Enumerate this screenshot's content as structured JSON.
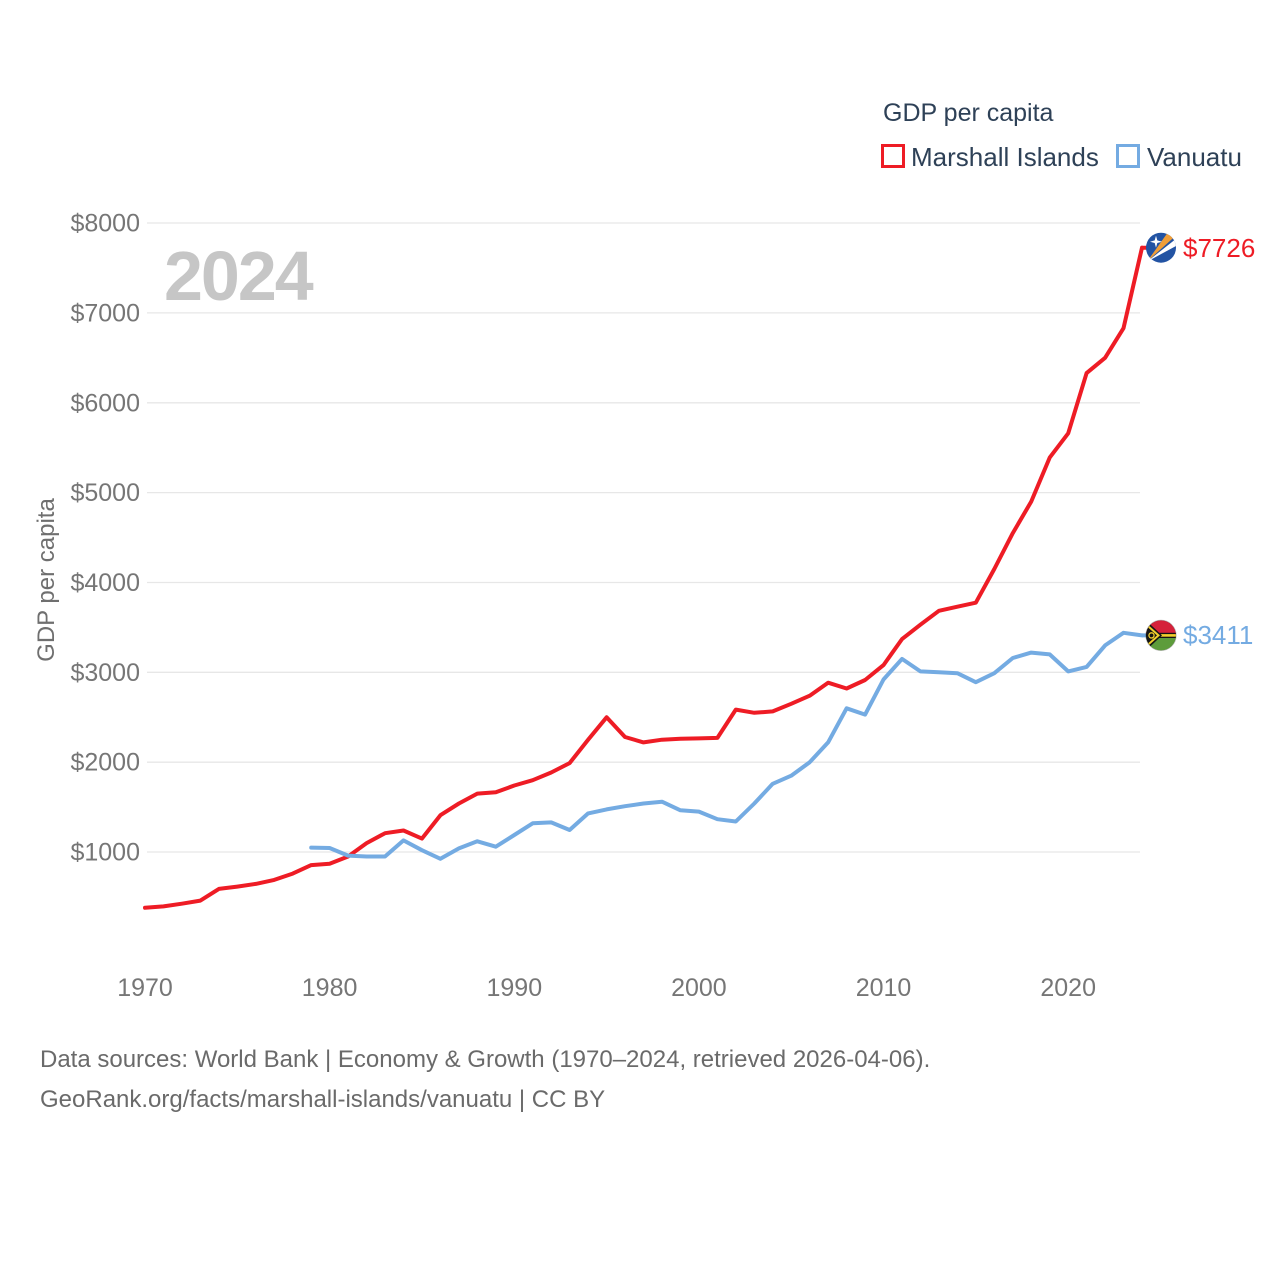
{
  "watermark": "2024",
  "legend": {
    "title": "GDP per capita",
    "series": [
      {
        "label": "Marshall Islands",
        "color": "#ee1c25"
      },
      {
        "label": "Vanuatu",
        "color": "#74abe2"
      }
    ]
  },
  "end_labels": [
    {
      "text": "$7726",
      "color": "#ee1c25",
      "flag": "marshall-islands-flag"
    },
    {
      "text": "$3411",
      "color": "#74abe2",
      "flag": "vanuatu-flag"
    }
  ],
  "y_axis_title": "GDP per capita",
  "footer": {
    "line1": "Data sources: World Bank | Economy & Growth (1970–2024, retrieved 2026-04-06).",
    "line2": "GeoRank.org/facts/marshall-islands/vanuatu | CC BY"
  },
  "chart_data": {
    "type": "line",
    "title": "GDP per capita",
    "xlabel": "",
    "ylabel": "GDP per capita",
    "grid": "horizontal",
    "legend_position": "top-right",
    "xlim": [
      1969,
      2026
    ],
    "ylim": [
      0,
      8400
    ],
    "x_ticks": [
      1970,
      1980,
      1990,
      2000,
      2010,
      2020
    ],
    "y_ticks": [
      {
        "value": 1000,
        "label": "$1000"
      },
      {
        "value": 2000,
        "label": "$2000"
      },
      {
        "value": 3000,
        "label": "$3000"
      },
      {
        "value": 4000,
        "label": "$4000"
      },
      {
        "value": 5000,
        "label": "$5000"
      },
      {
        "value": 6000,
        "label": "$6000"
      },
      {
        "value": 7000,
        "label": "$7000"
      },
      {
        "value": 8000,
        "label": "$8000"
      }
    ],
    "series": [
      {
        "name": "Marshall Islands",
        "color": "#ee1c25",
        "start_year": 1970,
        "end_year": 2024,
        "end_value": 7726,
        "values": [
          380,
          395,
          425,
          460,
          590,
          615,
          645,
          690,
          760,
          855,
          870,
          950,
          1100,
          1210,
          1240,
          1150,
          1410,
          1540,
          1650,
          1665,
          1740,
          1800,
          1885,
          1990,
          2250,
          2500,
          2280,
          2220,
          2250,
          2260,
          2265,
          2270,
          2585,
          2550,
          2565,
          2650,
          2740,
          2885,
          2820,
          2915,
          3080,
          3370,
          3530,
          3685,
          3730,
          3775,
          4150,
          4550,
          4900,
          5390,
          5660,
          6330,
          6500,
          6830,
          7726
        ]
      },
      {
        "name": "Vanuatu",
        "color": "#74abe2",
        "start_year": 1979,
        "end_year": 2024,
        "end_value": 3411,
        "values": [
          1050,
          1045,
          960,
          950,
          950,
          1130,
          1020,
          925,
          1040,
          1120,
          1060,
          1190,
          1320,
          1330,
          1245,
          1430,
          1475,
          1510,
          1540,
          1560,
          1465,
          1450,
          1365,
          1340,
          1540,
          1760,
          1850,
          2000,
          2220,
          2600,
          2530,
          2920,
          3150,
          3010,
          3000,
          2990,
          2890,
          2990,
          3160,
          3220,
          3200,
          3010,
          3060,
          3300,
          3440,
          3411
        ]
      }
    ]
  },
  "colors": {
    "gridline": "#e7e7e7",
    "tick_text": "#767676",
    "legend_text": "#2e4157",
    "watermark": "#c6c6c6",
    "footer_text": "#6a6a6a",
    "marshall_flag_blue": "#2253a3",
    "marshall_flag_orange": "#f09e38",
    "vanuatu_flag_red": "#d5213a",
    "vanuatu_flag_green": "#5d9c3b",
    "vanuatu_flag_yellow": "#f2cf2c",
    "vanuatu_flag_black": "#141414"
  }
}
